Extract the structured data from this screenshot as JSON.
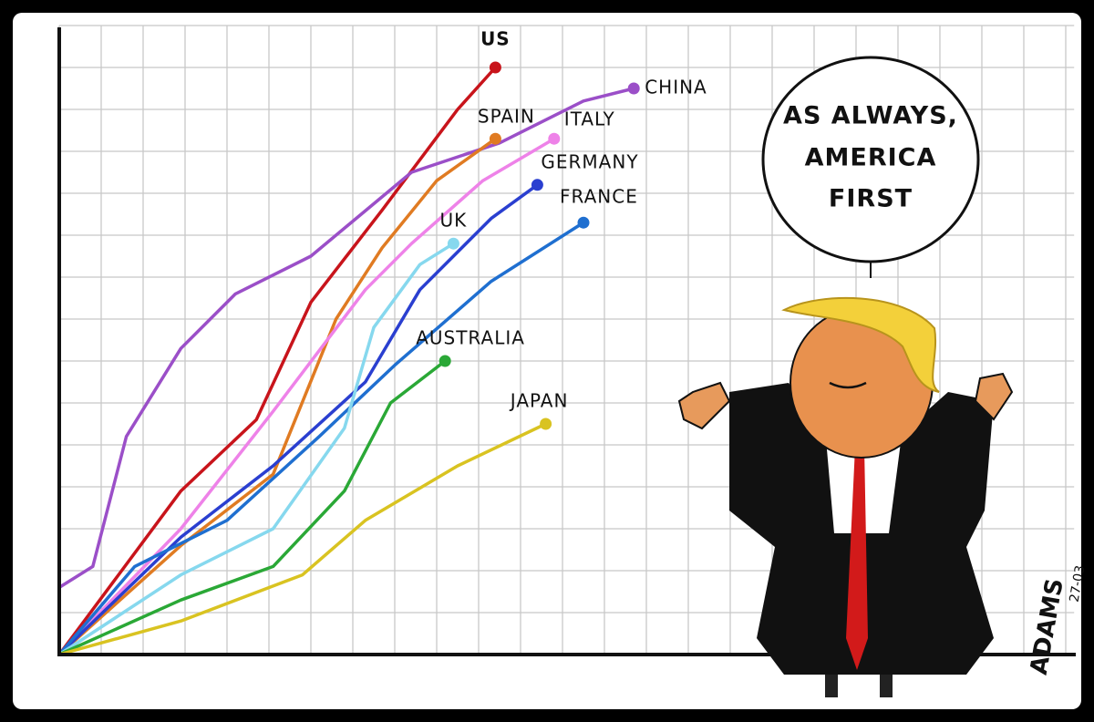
{
  "chart_data": {
    "type": "line",
    "xlim": [
      0,
      24.2
    ],
    "ylim": [
      0,
      15
    ],
    "xticks": [
      0,
      1,
      2,
      3,
      4,
      5,
      6,
      7,
      8,
      9,
      10,
      11,
      12,
      13,
      14,
      15,
      16,
      17,
      18,
      19,
      20,
      21,
      22,
      23,
      24
    ],
    "yticks": [
      0,
      1,
      2,
      3,
      4,
      5,
      6,
      7,
      8,
      9,
      10,
      11,
      12,
      13,
      14,
      15
    ],
    "grid": true,
    "series": [
      {
        "name": "US",
        "color": "#c8141b",
        "x": [
          0,
          2.9,
          4.7,
          6.0,
          7.7,
          9.5,
          10.4
        ],
        "values": [
          0,
          3.9,
          5.6,
          8.4,
          10.6,
          13,
          14.0
        ]
      },
      {
        "name": "CHINA",
        "color": "#9b4fc8",
        "x": [
          0,
          0.8,
          1.6,
          2.9,
          4.2,
          6.0,
          8.4,
          10.5,
          12.5,
          13.7
        ],
        "values": [
          1.6,
          2.1,
          5.2,
          7.3,
          8.6,
          9.5,
          11.5,
          12.2,
          13.2,
          13.5
        ]
      },
      {
        "name": "SPAIN",
        "color": "#e07b22",
        "x": [
          0,
          2.9,
          5.1,
          6.6,
          7.7,
          9.0,
          10.4
        ],
        "values": [
          0,
          2.6,
          4.3,
          8.0,
          9.7,
          11.3,
          12.3
        ]
      },
      {
        "name": "ITALY",
        "color": "#ee82e8",
        "x": [
          0,
          2.9,
          5.1,
          7.3,
          8.4,
          10.1,
          11.8
        ],
        "values": [
          0,
          3.0,
          5.8,
          8.7,
          9.8,
          11.3,
          12.3
        ]
      },
      {
        "name": "GERMANY",
        "color": "#2a3fd0",
        "x": [
          0,
          2.9,
          5.1,
          7.3,
          8.6,
          10.3,
          11.4
        ],
        "values": [
          0,
          2.8,
          4.5,
          6.5,
          8.7,
          10.4,
          11.2
        ]
      },
      {
        "name": "FRANCE",
        "color": "#1f6fd0",
        "x": [
          0,
          1.8,
          4.0,
          6.2,
          8.0,
          10.3,
          12.5
        ],
        "values": [
          0,
          2.1,
          3.2,
          5.2,
          6.9,
          8.9,
          10.3
        ]
      },
      {
        "name": "UK",
        "color": "#86d8ee",
        "x": [
          0,
          2.9,
          5.1,
          6.8,
          7.5,
          8.6,
          9.4
        ],
        "values": [
          0,
          1.9,
          3.0,
          5.4,
          7.8,
          9.3,
          9.8
        ]
      },
      {
        "name": "AUSTRALIA",
        "color": "#2aa836",
        "x": [
          0,
          2.9,
          5.1,
          6.8,
          7.9,
          9.2
        ],
        "values": [
          0,
          1.3,
          2.1,
          3.9,
          6.0,
          7.0
        ]
      },
      {
        "name": "JAPAN",
        "color": "#d9c321",
        "x": [
          0,
          2.9,
          5.8,
          7.3,
          9.5,
          11.6
        ],
        "values": [
          0,
          0.8,
          1.9,
          3.2,
          4.5,
          5.5
        ]
      }
    ]
  },
  "cartoon": {
    "speech_bubble": [
      "AS ALWAYS,",
      "AMERICA",
      "FIRST"
    ],
    "signature": "ADAMS",
    "date": "27-03"
  }
}
